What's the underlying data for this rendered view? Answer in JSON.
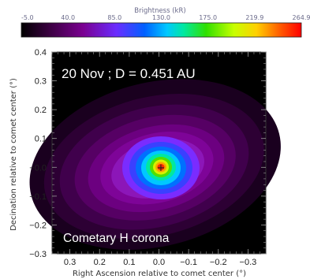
{
  "chart_data": {
    "type": "heatmap",
    "title": "",
    "colorbar": {
      "label": "Brightness (kR)",
      "ticks": [
        "-5.0",
        "40.0",
        "85.0",
        "130.0",
        "175.0",
        "219.9",
        "264.9"
      ],
      "range": [
        -5.0,
        264.9
      ],
      "colormap": [
        "#000000",
        "#3a0040",
        "#7a0090",
        "#6a2cff",
        "#0060ff",
        "#00c8ff",
        "#00e8a0",
        "#30e000",
        "#c8ff00",
        "#ffd000",
        "#ff6000",
        "#ff0000"
      ]
    },
    "xlabel": "Right Ascension relative to comet center (°)",
    "ylabel": "Decination relative to comet center (°)",
    "xticks": [
      "0.3",
      "0.2",
      "0.1",
      "0.0",
      "−0.1",
      "−0.2",
      "−0.3"
    ],
    "yticks": [
      "0.4",
      "0.3",
      "0.2",
      "0.1",
      "−0.0",
      "−0.1",
      "−0.2",
      "−0.3"
    ],
    "xlim": [
      0.36,
      -0.36
    ],
    "ylim": [
      -0.3,
      0.4
    ],
    "annotations": {
      "date_distance": "20 Nov ; D = 0.451 AU",
      "region": "Cometary H corona"
    },
    "center_marker": "+",
    "peak_position": [
      0.0,
      0.0
    ]
  }
}
